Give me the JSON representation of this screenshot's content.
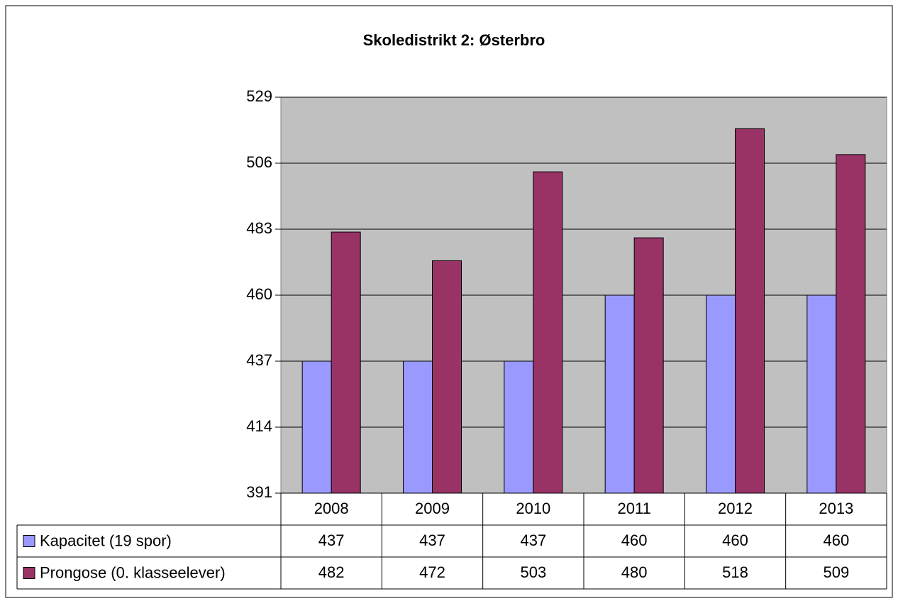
{
  "chart_data": {
    "type": "bar",
    "title": "Skoledistrikt 2: Østerbro",
    "categories": [
      "2008",
      "2009",
      "2010",
      "2011",
      "2012",
      "2013"
    ],
    "series": [
      {
        "name": "Kapacitet (19 spor)",
        "color": "#9999ff",
        "values": [
          437,
          437,
          437,
          460,
          460,
          460
        ]
      },
      {
        "name": "Prongose (0. klasseelever)",
        "color": "#993366",
        "values": [
          482,
          472,
          503,
          480,
          518,
          509
        ]
      }
    ],
    "ylim": [
      391,
      529
    ],
    "yticks": [
      391,
      414,
      437,
      460,
      483,
      506,
      529
    ],
    "grid": true
  }
}
